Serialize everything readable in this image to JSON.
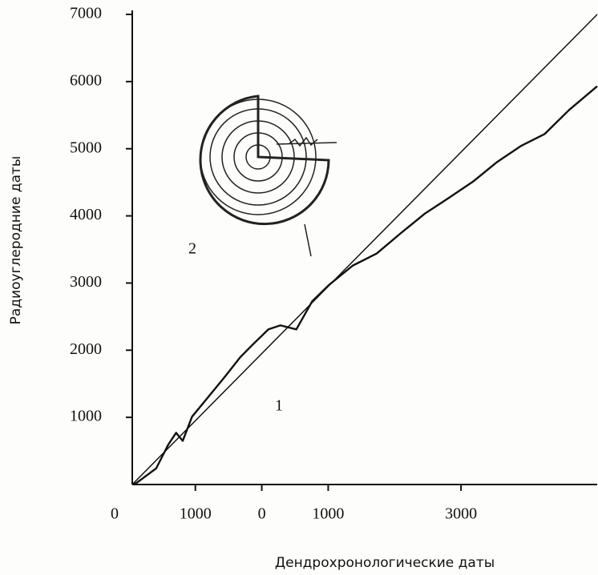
{
  "chart_data": {
    "type": "line",
    "x_label": "Дендрохронологические даты",
    "y_label": "Радиоуглеродние даты",
    "annotations": [
      "1",
      "2"
    ],
    "xlim": [
      0,
      7000
    ],
    "ylim": [
      0,
      7000
    ],
    "xticks": [
      0,
      {
        "value": 950,
        "label": "1000"
      },
      {
        "value": 1950,
        "label": "0"
      },
      {
        "value": 2950,
        "label": "1000"
      },
      {
        "value": 4950,
        "label": "3000"
      }
    ],
    "yticks": [
      1000,
      2000,
      3000,
      4000,
      5000,
      6000,
      7000
    ],
    "series": [
      {
        "color": "#111",
        "x": [
          0,
          60,
          360,
          540,
          660,
          760,
          900,
          1150,
          1390,
          1630,
          1810,
          2050,
          2230,
          2470,
          2710,
          2960,
          3320,
          3680,
          4040,
          4400,
          4770,
          5130,
          5490,
          5850,
          6210,
          6580,
          7000
        ],
        "values": [
          0,
          20,
          240,
          590,
          770,
          650,
          1010,
          1310,
          1600,
          1900,
          2080,
          2310,
          2370,
          2310,
          2730,
          2970,
          3260,
          3440,
          3740,
          4030,
          4270,
          4510,
          4800,
          5040,
          5220,
          5580,
          5930
        ]
      },
      {
        "color": "#111",
        "x": [
          0,
          7000
        ],
        "values": [
          0,
          7000
        ]
      }
    ]
  }
}
